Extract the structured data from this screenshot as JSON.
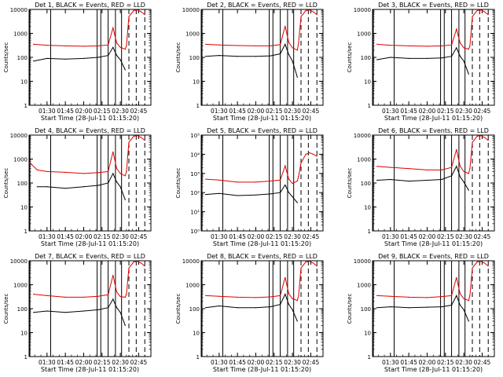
{
  "figure": {
    "xlabel": "Start Time (28-Jul-11 01:15:20)",
    "ylabel": "Counts/sec"
  },
  "colors": {
    "events": "#000000",
    "lld": "#e00000",
    "axes": "#000000"
  },
  "chart_data": [
    {
      "type": "line",
      "title": "Det 1, BLACK = Events, RED = LLD",
      "xlabel": "Start Time (28-Jul-11 01:15:20)",
      "ylabel": "Counts/sec",
      "xlim": [
        "01:15:20",
        "02:55:00"
      ],
      "ylim": [
        1,
        10000
      ],
      "yscale": "log",
      "xticks": [
        "01:30",
        "01:45",
        "02:00",
        "02:15",
        "02:30",
        "02:45"
      ],
      "yticks": [
        "1",
        "10",
        "100",
        "1000",
        "10000"
      ],
      "x": [
        "01:19",
        "01:30",
        "01:45",
        "02:00",
        "02:12",
        "02:20",
        "02:24",
        "02:27",
        "02:30",
        "02:34",
        "02:35",
        "02:37",
        "02:41",
        "02:44",
        "02:47",
        "02:50"
      ],
      "series": [
        {
          "name": "BLACK = Events",
          "values": [
            70,
            90,
            85,
            90,
            100,
            120,
            260,
            120,
            80,
            30,
            null,
            null,
            null,
            null,
            null,
            null
          ]
        },
        {
          "name": "RED = LLD",
          "values": [
            350,
            320,
            300,
            290,
            300,
            330,
            1700,
            400,
            260,
            220,
            300,
            5000,
            9000,
            9500,
            8000,
            6000
          ]
        }
      ],
      "vlines": {
        "solid": [
          "01:16",
          "01:33",
          "02:11",
          "02:14",
          "02:20",
          "02:26",
          "02:31"
        ],
        "dashed": [
          "02:37",
          "02:43",
          "02:50"
        ]
      }
    },
    {
      "type": "line",
      "title": "Det 2, BLACK = Events, RED = LLD",
      "xlabel": "Start Time (28-Jul-11 01:15:20)",
      "ylabel": "Counts/sec",
      "xlim": [
        "01:15:20",
        "02:55:00"
      ],
      "ylim": [
        1,
        10000
      ],
      "yscale": "log",
      "xticks": [
        "01:30",
        "01:45",
        "02:00",
        "02:15",
        "02:30",
        "02:45"
      ],
      "yticks": [
        "1",
        "10",
        "100",
        "1000",
        "10000"
      ],
      "x": [
        "01:19",
        "01:30",
        "01:45",
        "02:00",
        "02:12",
        "02:20",
        "02:24",
        "02:27",
        "02:30",
        "02:34",
        "02:35",
        "02:37",
        "02:41",
        "02:44",
        "02:47",
        "02:50"
      ],
      "series": [
        {
          "name": "BLACK = Events",
          "values": [
            110,
            120,
            110,
            110,
            115,
            140,
            350,
            130,
            70,
            15,
            null,
            null,
            null,
            null,
            null,
            null
          ]
        },
        {
          "name": "RED = LLD",
          "values": [
            350,
            330,
            310,
            300,
            300,
            340,
            2000,
            420,
            250,
            200,
            400,
            5000,
            9000,
            9500,
            8000,
            6000
          ]
        }
      ],
      "vlines": {
        "solid": [
          "01:16",
          "01:33",
          "02:11",
          "02:14",
          "02:20",
          "02:26",
          "02:31"
        ],
        "dashed": [
          "02:37",
          "02:43",
          "02:50"
        ]
      }
    },
    {
      "type": "line",
      "title": "Det 3, BLACK = Events, RED = LLD",
      "xlabel": "Start Time (28-Jul-11 01:15:20)",
      "ylabel": "Counts/sec",
      "xlim": [
        "01:15:20",
        "02:55:00"
      ],
      "ylim": [
        1,
        10000
      ],
      "yscale": "log",
      "xticks": [
        "01:30",
        "01:45",
        "02:00",
        "02:15",
        "02:30",
        "02:45"
      ],
      "yticks": [
        "1",
        "10",
        "100",
        "1000",
        "10000"
      ],
      "x": [
        "01:19",
        "01:30",
        "01:45",
        "02:00",
        "02:12",
        "02:20",
        "02:24",
        "02:27",
        "02:30",
        "02:34",
        "02:35",
        "02:37",
        "02:41",
        "02:44",
        "02:47",
        "02:50"
      ],
      "series": [
        {
          "name": "BLACK = Events",
          "values": [
            80,
            100,
            90,
            90,
            95,
            110,
            250,
            110,
            70,
            20,
            null,
            null,
            null,
            null,
            null,
            null
          ]
        },
        {
          "name": "RED = LLD",
          "values": [
            350,
            320,
            300,
            290,
            300,
            330,
            1500,
            400,
            250,
            220,
            300,
            5000,
            9000,
            9500,
            8000,
            6000
          ]
        }
      ],
      "vlines": {
        "solid": [
          "01:16",
          "01:33",
          "02:11",
          "02:14",
          "02:20",
          "02:26",
          "02:31"
        ],
        "dashed": [
          "02:37",
          "02:43",
          "02:50"
        ]
      }
    },
    {
      "type": "line",
      "title": "Det 4, BLACK = Events, RED = LLD",
      "xlabel": "Start Time (28-Jul-11 01:15:20)",
      "ylabel": "Counts/sec",
      "xlim": [
        "01:15:20",
        "02:55:00"
      ],
      "ylim": [
        1,
        10000
      ],
      "yscale": "log",
      "xticks": [
        "01:30",
        "01:45",
        "02:00",
        "02:15",
        "02:30",
        "02:45"
      ],
      "yticks": [
        "1",
        "10",
        "100",
        "1000",
        "10000"
      ],
      "x": [
        "01:16",
        "01:22",
        "01:30",
        "01:45",
        "02:00",
        "02:12",
        "02:20",
        "02:24",
        "02:27",
        "02:30",
        "02:34",
        "02:35",
        "02:37",
        "02:41",
        "02:44",
        "02:47",
        "02:50"
      ],
      "series": [
        {
          "name": "BLACK = Events",
          "values": [
            null,
            70,
            70,
            60,
            70,
            80,
            100,
            250,
            110,
            70,
            20,
            null,
            null,
            null,
            null,
            null,
            null
          ]
        },
        {
          "name": "RED = LLD",
          "values": [
            700,
            350,
            300,
            280,
            250,
            270,
            300,
            2000,
            400,
            250,
            200,
            300,
            5000,
            9000,
            9500,
            8000,
            6000
          ]
        }
      ],
      "vlines": {
        "solid": [
          "01:16",
          "01:33",
          "02:11",
          "02:14",
          "02:20",
          "02:26",
          "02:31"
        ],
        "dashed": [
          "02:37",
          "02:43",
          "02:50"
        ]
      }
    },
    {
      "type": "line",
      "title": "Det 5, BLACK = Events, RED = LLD",
      "xlabel": "Start Time (28-Jul-11 01:15:20)",
      "ylabel": "Counts/sec",
      "xlim": [
        "01:15:20",
        "02:55:00"
      ],
      "ylim": [
        1,
        100000
      ],
      "yscale": "log",
      "xticks": [
        "01:30",
        "01:45",
        "02:00",
        "02:15",
        "02:30",
        "02:45"
      ],
      "yticks": [
        "10⁰",
        "10¹",
        "10²",
        "10³",
        "10⁴",
        "10⁵"
      ],
      "x": [
        "01:19",
        "01:30",
        "01:45",
        "02:00",
        "02:12",
        "02:20",
        "02:24",
        "02:27",
        "02:30",
        "02:34",
        "02:35",
        "02:37",
        "02:41",
        "02:44",
        "02:47",
        "02:50"
      ],
      "series": [
        {
          "name": "BLACK = Events",
          "values": [
            80,
            90,
            70,
            75,
            85,
            100,
            250,
            100,
            60,
            30,
            null,
            null,
            null,
            null,
            null,
            null
          ]
        },
        {
          "name": "RED = LLD",
          "values": [
            500,
            450,
            350,
            350,
            400,
            450,
            2500,
            500,
            300,
            400,
            700,
            3500,
            10000,
            12000,
            10000,
            8000
          ]
        }
      ],
      "vlines": {
        "solid": [
          "01:16",
          "01:33",
          "02:11",
          "02:14",
          "02:20",
          "02:26",
          "02:31"
        ],
        "dashed": [
          "02:37",
          "02:43",
          "02:50"
        ]
      }
    },
    {
      "type": "line",
      "title": "Det 6, BLACK = Events, RED = LLD",
      "xlabel": "Start Time (28-Jul-11 01:15:20)",
      "ylabel": "Counts/sec",
      "xlim": [
        "01:15:20",
        "02:55:00"
      ],
      "ylim": [
        1,
        10000
      ],
      "yscale": "log",
      "xticks": [
        "01:30",
        "01:45",
        "02:00",
        "02:15",
        "02:30",
        "02:45"
      ],
      "yticks": [
        "1",
        "10",
        "100",
        "1000",
        "10000"
      ],
      "x": [
        "01:19",
        "01:30",
        "01:45",
        "02:00",
        "02:12",
        "02:20",
        "02:24",
        "02:27",
        "02:30",
        "02:34",
        "02:35",
        "02:37",
        "02:41",
        "02:44",
        "02:47",
        "02:50"
      ],
      "series": [
        {
          "name": "BLACK = Events",
          "values": [
            130,
            140,
            120,
            130,
            140,
            200,
            500,
            180,
            110,
            50,
            null,
            null,
            null,
            null,
            null,
            null
          ]
        },
        {
          "name": "RED = LLD",
          "values": [
            500,
            450,
            400,
            350,
            350,
            450,
            2500,
            500,
            300,
            250,
            400,
            5000,
            9000,
            9500,
            8000,
            6000
          ]
        }
      ],
      "vlines": {
        "solid": [
          "01:16",
          "01:33",
          "02:11",
          "02:14",
          "02:20",
          "02:26",
          "02:31"
        ],
        "dashed": [
          "02:37",
          "02:43",
          "02:50"
        ]
      }
    },
    {
      "type": "line",
      "title": "Det 7, BLACK = Events, RED = LLD",
      "xlabel": "Start Time (28-Jul-11 01:15:20)",
      "ylabel": "Counts/sec",
      "xlim": [
        "01:15:20",
        "02:55:00"
      ],
      "ylim": [
        1,
        10000
      ],
      "yscale": "log",
      "xticks": [
        "01:30",
        "01:45",
        "02:00",
        "02:15",
        "02:30",
        "02:45"
      ],
      "yticks": [
        "1",
        "10",
        "100",
        "1000",
        "10000"
      ],
      "x": [
        "01:19",
        "01:30",
        "01:45",
        "02:00",
        "02:12",
        "02:20",
        "02:24",
        "02:27",
        "02:30",
        "02:34",
        "02:35",
        "02:37",
        "02:41",
        "02:44",
        "02:47",
        "02:50"
      ],
      "series": [
        {
          "name": "BLACK = Events",
          "values": [
            70,
            80,
            70,
            80,
            90,
            110,
            250,
            110,
            70,
            20,
            null,
            null,
            null,
            null,
            null,
            null
          ]
        },
        {
          "name": "RED = LLD",
          "values": [
            400,
            350,
            300,
            300,
            330,
            380,
            2500,
            500,
            320,
            300,
            400,
            5000,
            9000,
            9500,
            8000,
            6000
          ]
        }
      ],
      "vlines": {
        "solid": [
          "01:16",
          "01:33",
          "02:11",
          "02:14",
          "02:20",
          "02:26",
          "02:31"
        ],
        "dashed": [
          "02:37",
          "02:43",
          "02:50"
        ]
      }
    },
    {
      "type": "line",
      "title": "Det 8, BLACK = Events, RED = LLD",
      "xlabel": "Start Time (28-Jul-11 01:15:20)",
      "ylabel": "Counts/sec",
      "xlim": [
        "01:15:20",
        "02:55:00"
      ],
      "ylim": [
        1,
        10000
      ],
      "yscale": "log",
      "xticks": [
        "01:30",
        "01:45",
        "02:00",
        "02:15",
        "02:30",
        "02:45"
      ],
      "yticks": [
        "1",
        "10",
        "100",
        "1000",
        "10000"
      ],
      "x": [
        "01:19",
        "01:30",
        "01:45",
        "02:00",
        "02:12",
        "02:20",
        "02:24",
        "02:27",
        "02:30",
        "02:34",
        "02:35",
        "02:37",
        "02:41",
        "02:44",
        "02:47",
        "02:50"
      ],
      "series": [
        {
          "name": "BLACK = Events",
          "values": [
            110,
            130,
            110,
            110,
            120,
            150,
            400,
            150,
            90,
            30,
            null,
            null,
            null,
            null,
            null,
            null
          ]
        },
        {
          "name": "RED = LLD",
          "values": [
            350,
            330,
            300,
            290,
            310,
            350,
            2000,
            420,
            260,
            220,
            350,
            5000,
            9000,
            9500,
            8000,
            6000
          ]
        }
      ],
      "vlines": {
        "solid": [
          "01:16",
          "01:33",
          "02:11",
          "02:14",
          "02:20",
          "02:26",
          "02:31"
        ],
        "dashed": [
          "02:37",
          "02:43",
          "02:50"
        ]
      }
    },
    {
      "type": "line",
      "title": "Det 9, BLACK = Events, RED = LLD",
      "xlabel": "Start Time (28-Jul-11 01:15:20)",
      "ylabel": "Counts/sec",
      "xlim": [
        "01:15:20",
        "02:55:00"
      ],
      "ylim": [
        1,
        10000
      ],
      "yscale": "log",
      "xticks": [
        "01:30",
        "01:45",
        "02:00",
        "02:15",
        "02:30",
        "02:45"
      ],
      "yticks": [
        "1",
        "10",
        "100",
        "1000",
        "10000"
      ],
      "x": [
        "01:19",
        "01:30",
        "01:45",
        "02:00",
        "02:12",
        "02:20",
        "02:24",
        "02:27",
        "02:30",
        "02:34",
        "02:35",
        "02:37",
        "02:41",
        "02:44",
        "02:47",
        "02:50"
      ],
      "series": [
        {
          "name": "BLACK = Events",
          "values": [
            110,
            120,
            110,
            115,
            120,
            140,
            350,
            140,
            90,
            30,
            null,
            null,
            null,
            null,
            null,
            null
          ]
        },
        {
          "name": "RED = LLD",
          "values": [
            350,
            330,
            300,
            290,
            320,
            350,
            2000,
            420,
            260,
            220,
            350,
            5000,
            9000,
            9500,
            8000,
            6000
          ]
        }
      ],
      "vlines": {
        "solid": [
          "01:16",
          "01:33",
          "02:11",
          "02:14",
          "02:20",
          "02:26",
          "02:31"
        ],
        "dashed": [
          "02:37",
          "02:43",
          "02:50"
        ]
      }
    }
  ]
}
